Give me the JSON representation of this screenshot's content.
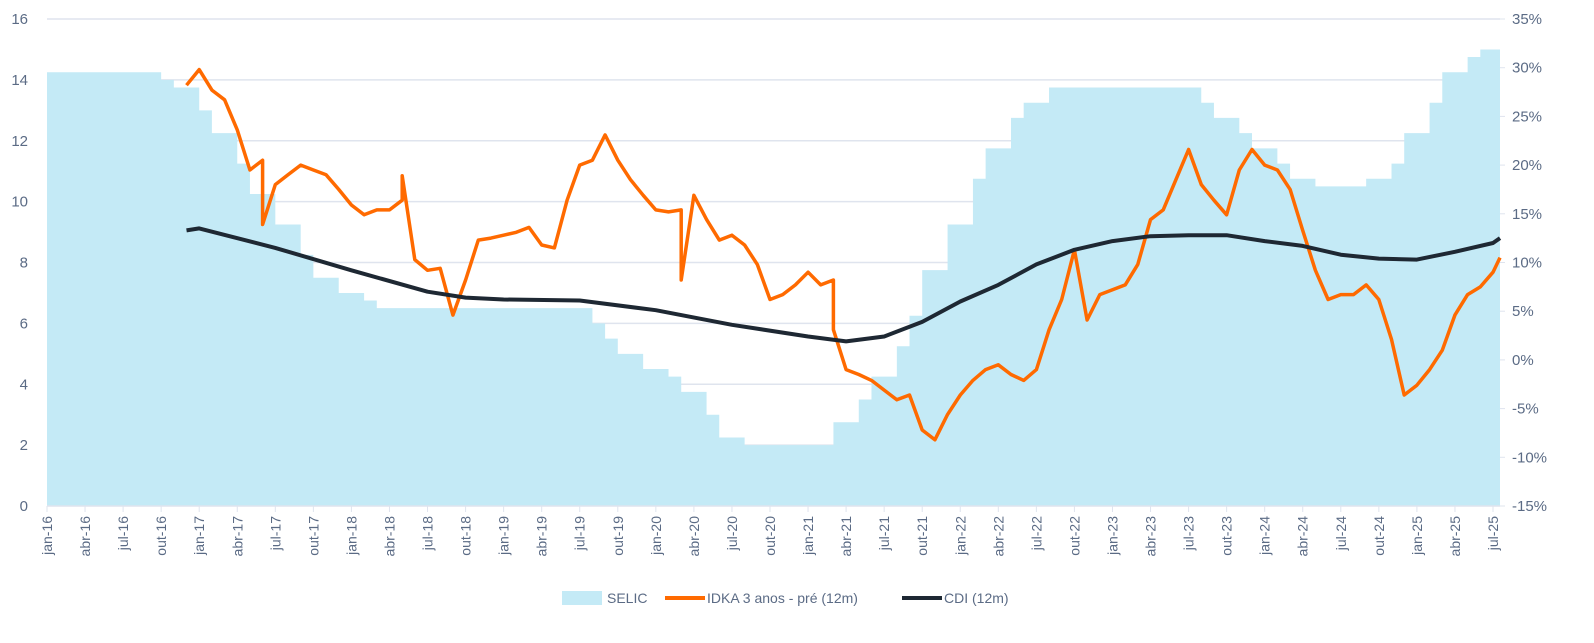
{
  "chart_data": {
    "type": "line",
    "title": "",
    "colors": {
      "selic": "#c4eaf6",
      "idka": "#ff6a00",
      "cdi": "#1e2833",
      "grid": "#dfe4ee",
      "text": "#5b6b85"
    },
    "x_range": [
      "2016-01",
      "2025-08"
    ],
    "y_left": {
      "range": [
        0,
        16
      ],
      "ticks": [
        "0",
        "2",
        "4",
        "6",
        "8",
        "10",
        "12",
        "14",
        "16"
      ]
    },
    "y_right": {
      "range": [
        -15,
        35
      ],
      "ticks": [
        "-15%",
        "-10%",
        "-5%",
        "0%",
        "5%",
        "10%",
        "15%",
        "20%",
        "25%",
        "30%",
        "35%"
      ]
    },
    "x_ticks": [
      "jan-16",
      "abr-16",
      "jul-16",
      "out-16",
      "jan-17",
      "abr-17",
      "jul-17",
      "out-17",
      "jan-18",
      "abr-18",
      "jul-18",
      "out-18",
      "jan-19",
      "abr-19",
      "jul-19",
      "out-19",
      "jan-20",
      "abr-20",
      "jul-20",
      "out-20",
      "jan-21",
      "abr-21",
      "jul-21",
      "out-21",
      "jan-22",
      "abr-22",
      "jul-22",
      "out-22",
      "jan-23",
      "abr-23",
      "jul-23",
      "out-23",
      "jan-24",
      "abr-24",
      "jul-24",
      "out-24",
      "jan-25",
      "abr-25",
      "jul-25"
    ],
    "grid": true,
    "legend_position": "bottom",
    "series": [
      {
        "name": "SELIC",
        "type": "step-area",
        "axis": "left",
        "points": [
          [
            "2016-01",
            14.25
          ],
          [
            "2016-10",
            14.0
          ],
          [
            "2016-11",
            13.75
          ],
          [
            "2017-01",
            13.0
          ],
          [
            "2017-02",
            12.25
          ],
          [
            "2017-04",
            11.25
          ],
          [
            "2017-05",
            10.25
          ],
          [
            "2017-07",
            9.25
          ],
          [
            "2017-09",
            8.25
          ],
          [
            "2017-10",
            7.5
          ],
          [
            "2017-12",
            7.0
          ],
          [
            "2018-02",
            6.75
          ],
          [
            "2018-03",
            6.5
          ],
          [
            "2019-08",
            6.0
          ],
          [
            "2019-09",
            5.5
          ],
          [
            "2019-10",
            5.0
          ],
          [
            "2019-12",
            4.5
          ],
          [
            "2020-02",
            4.25
          ],
          [
            "2020-03",
            3.75
          ],
          [
            "2020-05",
            3.0
          ],
          [
            "2020-06",
            2.25
          ],
          [
            "2020-08",
            2.0
          ],
          [
            "2021-03",
            2.75
          ],
          [
            "2021-05",
            3.5
          ],
          [
            "2021-06",
            4.25
          ],
          [
            "2021-08",
            5.25
          ],
          [
            "2021-09",
            6.25
          ],
          [
            "2021-10",
            7.75
          ],
          [
            "2021-12",
            9.25
          ],
          [
            "2022-02",
            10.75
          ],
          [
            "2022-03",
            11.75
          ],
          [
            "2022-05",
            12.75
          ],
          [
            "2022-06",
            13.25
          ],
          [
            "2022-08",
            13.75
          ],
          [
            "2023-08",
            13.25
          ],
          [
            "2023-09",
            12.75
          ],
          [
            "2023-11",
            12.25
          ],
          [
            "2023-12",
            11.75
          ],
          [
            "2024-02",
            11.25
          ],
          [
            "2024-03",
            10.75
          ],
          [
            "2024-05",
            10.5
          ],
          [
            "2024-09",
            10.75
          ],
          [
            "2024-11",
            11.25
          ],
          [
            "2024-12",
            12.25
          ],
          [
            "2025-02",
            13.25
          ],
          [
            "2025-03",
            14.25
          ],
          [
            "2025-05",
            14.75
          ],
          [
            "2025-06",
            15.0
          ]
        ]
      },
      {
        "name": "IDKA 3 anos - pré (12m)",
        "type": "line",
        "axis": "right",
        "points": [
          [
            "2016-12",
            28.2
          ],
          [
            "2017-01",
            29.8
          ],
          [
            "2017-02",
            27.7
          ],
          [
            "2017-03",
            26.7
          ],
          [
            "2017-04",
            23.6
          ],
          [
            "2017-05",
            19.5
          ],
          [
            "2017-06",
            20.5
          ],
          [
            "2017-06",
            13.9
          ],
          [
            "2017-07",
            18.0
          ],
          [
            "2017-08",
            19.0
          ],
          [
            "2017-09",
            20.0
          ],
          [
            "2017-10",
            19.5
          ],
          [
            "2017-11",
            19.0
          ],
          [
            "2017-12",
            17.5
          ],
          [
            "2018-01",
            15.9
          ],
          [
            "2018-02",
            14.9
          ],
          [
            "2018-03",
            15.4
          ],
          [
            "2018-04",
            15.4
          ],
          [
            "2018-05",
            16.4
          ],
          [
            "2018-05",
            18.9
          ],
          [
            "2018-06",
            10.3
          ],
          [
            "2018-07",
            9.2
          ],
          [
            "2018-08",
            9.4
          ],
          [
            "2018-09",
            4.6
          ],
          [
            "2018-10",
            8.2
          ],
          [
            "2018-11",
            12.3
          ],
          [
            "2018-12",
            12.5
          ],
          [
            "2019-01",
            12.8
          ],
          [
            "2019-02",
            13.1
          ],
          [
            "2019-03",
            13.6
          ],
          [
            "2019-04",
            11.8
          ],
          [
            "2019-05",
            11.5
          ],
          [
            "2019-06",
            16.4
          ],
          [
            "2019-07",
            20.0
          ],
          [
            "2019-08",
            20.5
          ],
          [
            "2019-09",
            23.1
          ],
          [
            "2019-10",
            20.5
          ],
          [
            "2019-11",
            18.5
          ],
          [
            "2019-12",
            16.9
          ],
          [
            "2020-01",
            15.4
          ],
          [
            "2020-02",
            15.2
          ],
          [
            "2020-03",
            15.4
          ],
          [
            "2020-03",
            8.2
          ],
          [
            "2020-04",
            16.9
          ],
          [
            "2020-05",
            14.4
          ],
          [
            "2020-06",
            12.3
          ],
          [
            "2020-07",
            12.8
          ],
          [
            "2020-08",
            11.8
          ],
          [
            "2020-09",
            9.8
          ],
          [
            "2020-10",
            6.2
          ],
          [
            "2020-11",
            6.7
          ],
          [
            "2020-12",
            7.7
          ],
          [
            "2021-01",
            9.0
          ],
          [
            "2021-02",
            7.7
          ],
          [
            "2021-03",
            8.2
          ],
          [
            "2021-03",
            3.1
          ],
          [
            "2021-04",
            -1.0
          ],
          [
            "2021-05",
            -1.5
          ],
          [
            "2021-06",
            -2.1
          ],
          [
            "2021-07",
            -3.1
          ],
          [
            "2021-08",
            -4.1
          ],
          [
            "2021-09",
            -3.6
          ],
          [
            "2021-10",
            -7.2
          ],
          [
            "2021-11",
            -8.2
          ],
          [
            "2021-12",
            -5.6
          ],
          [
            "2022-01",
            -3.6
          ],
          [
            "2022-02",
            -2.1
          ],
          [
            "2022-03",
            -1.0
          ],
          [
            "2022-04",
            -0.5
          ],
          [
            "2022-05",
            -1.5
          ],
          [
            "2022-06",
            -2.1
          ],
          [
            "2022-07",
            -1.0
          ],
          [
            "2022-08",
            3.1
          ],
          [
            "2022-09",
            6.2
          ],
          [
            "2022-10",
            11.3
          ],
          [
            "2022-11",
            4.1
          ],
          [
            "2022-12",
            6.7
          ],
          [
            "2023-01",
            7.2
          ],
          [
            "2023-02",
            7.7
          ],
          [
            "2023-03",
            9.8
          ],
          [
            "2023-04",
            14.4
          ],
          [
            "2023-05",
            15.4
          ],
          [
            "2023-06",
            18.5
          ],
          [
            "2023-07",
            21.6
          ],
          [
            "2023-08",
            18.0
          ],
          [
            "2023-09",
            16.4
          ],
          [
            "2023-10",
            14.9
          ],
          [
            "2023-11",
            19.5
          ],
          [
            "2023-12",
            21.6
          ],
          [
            "2024-01",
            20.0
          ],
          [
            "2024-02",
            19.5
          ],
          [
            "2024-03",
            17.5
          ],
          [
            "2024-04",
            13.3
          ],
          [
            "2024-05",
            9.2
          ],
          [
            "2024-06",
            6.2
          ],
          [
            "2024-07",
            6.7
          ],
          [
            "2024-08",
            6.7
          ],
          [
            "2024-09",
            7.7
          ],
          [
            "2024-10",
            6.2
          ],
          [
            "2024-11",
            2.1
          ],
          [
            "2024-12",
            -3.6
          ],
          [
            "2025-01",
            -2.6
          ],
          [
            "2025-02",
            -1.0
          ],
          [
            "2025-03",
            1.0
          ],
          [
            "2025-04",
            4.6
          ],
          [
            "2025-05",
            6.7
          ],
          [
            "2025-06",
            7.5
          ],
          [
            "2025-07",
            9.0
          ],
          [
            "2025-08",
            10.5
          ]
        ]
      },
      {
        "name": "CDI (12m)",
        "type": "line",
        "axis": "right",
        "points": [
          [
            "2016-12",
            13.3
          ],
          [
            "2017-01",
            13.5
          ],
          [
            "2017-07",
            11.5
          ],
          [
            "2018-01",
            9.2
          ],
          [
            "2018-07",
            7.0
          ],
          [
            "2018-10",
            6.4
          ],
          [
            "2019-01",
            6.2
          ],
          [
            "2019-07",
            6.1
          ],
          [
            "2020-01",
            5.1
          ],
          [
            "2020-07",
            3.6
          ],
          [
            "2021-01",
            2.4
          ],
          [
            "2021-04",
            1.9
          ],
          [
            "2021-07",
            2.4
          ],
          [
            "2021-10",
            3.9
          ],
          [
            "2022-01",
            6.0
          ],
          [
            "2022-04",
            7.7
          ],
          [
            "2022-07",
            9.8
          ],
          [
            "2022-10",
            11.3
          ],
          [
            "2023-01",
            12.2
          ],
          [
            "2023-04",
            12.7
          ],
          [
            "2023-07",
            12.8
          ],
          [
            "2023-10",
            12.8
          ],
          [
            "2024-01",
            12.2
          ],
          [
            "2024-04",
            11.7
          ],
          [
            "2024-07",
            10.8
          ],
          [
            "2024-10",
            10.4
          ],
          [
            "2025-01",
            10.3
          ],
          [
            "2025-04",
            11.1
          ],
          [
            "2025-07",
            12.0
          ],
          [
            "2025-08",
            12.5
          ]
        ]
      }
    ]
  },
  "legend": {
    "items": [
      "SELIC",
      "IDKA 3 anos - pré (12m)",
      "CDI (12m)"
    ]
  }
}
